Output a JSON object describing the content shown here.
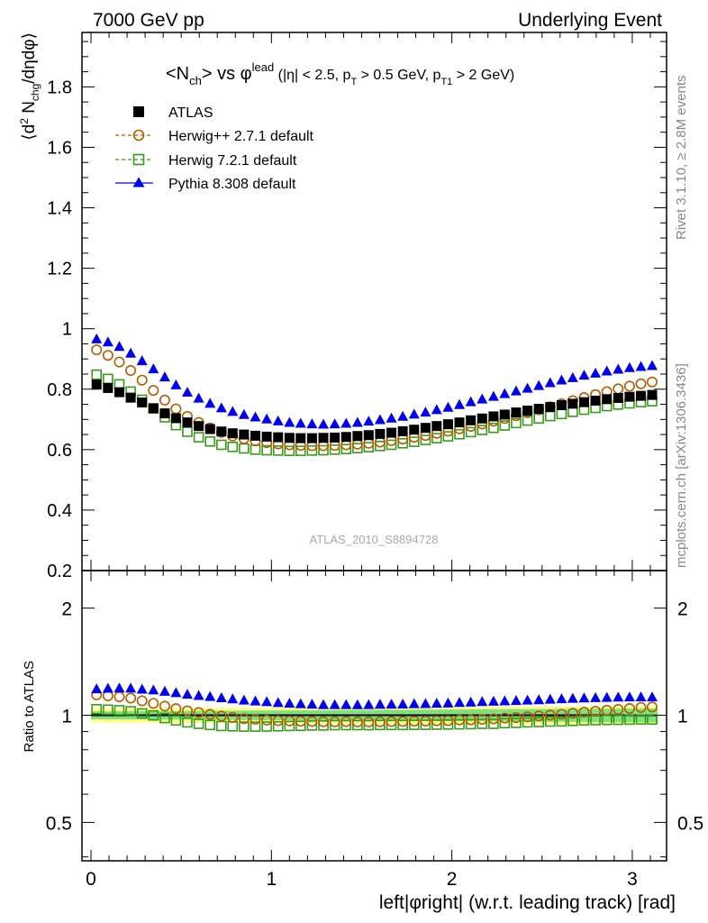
{
  "header": {
    "left": "7000 GeV pp",
    "right": "Underlying Event"
  },
  "plot_title": "<N_ch> vs φ^lead (|η| < 2.5, p_T > 0.5 GeV, p_T1 > 2 GeV)",
  "side_labels": {
    "rivet": "Rivet 3.1.10, ≥ 2.8M events",
    "mcplots": "mcplots.cern.ch [arXiv:1306.3436]"
  },
  "analysis_label": "ATLAS_2010_S8894728",
  "y_label_main": "⟨d² N_chg/dηdφ⟩",
  "y_label_ratio": "Ratio to ATLAS",
  "x_label": "left|φright| (w.r.t. leading track) [rad]",
  "colors": {
    "atlas": "#000000",
    "herwigpp": "#b35c00",
    "herwig7": "#3a9a1a",
    "pythia": "#0000ee",
    "band_inner": "#7ee07e",
    "band_outer": "#ffff80"
  },
  "chart_data": [
    {
      "type": "scatter",
      "panel": "main",
      "xlim": [
        -0.05,
        3.19
      ],
      "ylim": [
        0.2,
        1.98
      ],
      "yticks": [
        0.2,
        0.4,
        0.6,
        0.8,
        1,
        1.2,
        1.4,
        1.6,
        1.8
      ],
      "ytick_labels": [
        "0.2",
        "0.4",
        "0.6",
        "0.8",
        "1",
        "1.2",
        "1.4",
        "1.6",
        "1.8"
      ],
      "legend_position": "top-left",
      "x": [
        0.031,
        0.094,
        0.157,
        0.22,
        0.283,
        0.346,
        0.409,
        0.471,
        0.534,
        0.597,
        0.66,
        0.723,
        0.785,
        0.848,
        0.911,
        0.974,
        1.037,
        1.1,
        1.162,
        1.225,
        1.288,
        1.351,
        1.414,
        1.477,
        1.539,
        1.602,
        1.665,
        1.728,
        1.791,
        1.854,
        1.916,
        1.979,
        2.042,
        2.105,
        2.168,
        2.231,
        2.293,
        2.356,
        2.419,
        2.482,
        2.545,
        2.608,
        2.67,
        2.733,
        2.796,
        2.859,
        2.922,
        2.985,
        3.048,
        3.11
      ],
      "series": [
        {
          "name": "ATLAS",
          "marker": "filled-square",
          "values": [
            0.815,
            0.804,
            0.79,
            0.772,
            0.756,
            0.737,
            0.72,
            0.704,
            0.69,
            0.678,
            0.668,
            0.66,
            0.654,
            0.65,
            0.646,
            0.643,
            0.641,
            0.639,
            0.638,
            0.638,
            0.639,
            0.64,
            0.642,
            0.645,
            0.648,
            0.652,
            0.656,
            0.661,
            0.666,
            0.672,
            0.678,
            0.684,
            0.69,
            0.697,
            0.703,
            0.71,
            0.716,
            0.723,
            0.729,
            0.735,
            0.741,
            0.747,
            0.752,
            0.757,
            0.762,
            0.767,
            0.771,
            0.775,
            0.778,
            0.781
          ]
        },
        {
          "name": "Herwig++ 2.7.1 default",
          "marker": "open-circle",
          "values": [
            0.93,
            0.912,
            0.89,
            0.862,
            0.83,
            0.796,
            0.764,
            0.735,
            0.71,
            0.69,
            0.672,
            0.657,
            0.645,
            0.636,
            0.629,
            0.623,
            0.619,
            0.616,
            0.614,
            0.613,
            0.613,
            0.614,
            0.616,
            0.618,
            0.621,
            0.625,
            0.63,
            0.635,
            0.641,
            0.647,
            0.654,
            0.661,
            0.669,
            0.677,
            0.685,
            0.694,
            0.703,
            0.712,
            0.722,
            0.732,
            0.742,
            0.752,
            0.762,
            0.772,
            0.782,
            0.792,
            0.801,
            0.81,
            0.818,
            0.824
          ]
        },
        {
          "name": "Herwig 7.2.1 default",
          "marker": "open-square",
          "values": [
            0.848,
            0.834,
            0.816,
            0.792,
            0.765,
            0.736,
            0.707,
            0.681,
            0.659,
            0.641,
            0.627,
            0.616,
            0.609,
            0.604,
            0.6,
            0.598,
            0.597,
            0.596,
            0.596,
            0.597,
            0.598,
            0.6,
            0.602,
            0.605,
            0.608,
            0.612,
            0.616,
            0.621,
            0.626,
            0.632,
            0.638,
            0.644,
            0.651,
            0.658,
            0.665,
            0.672,
            0.68,
            0.688,
            0.696,
            0.703,
            0.711,
            0.718,
            0.725,
            0.732,
            0.738,
            0.744,
            0.749,
            0.753,
            0.757,
            0.76
          ]
        },
        {
          "name": "Pythia 8.308 default",
          "marker": "filled-triangle",
          "values": [
            0.965,
            0.955,
            0.94,
            0.918,
            0.893,
            0.866,
            0.839,
            0.813,
            0.789,
            0.769,
            0.752,
            0.737,
            0.725,
            0.715,
            0.707,
            0.7,
            0.694,
            0.689,
            0.686,
            0.684,
            0.683,
            0.684,
            0.686,
            0.689,
            0.693,
            0.698,
            0.703,
            0.709,
            0.716,
            0.723,
            0.731,
            0.739,
            0.748,
            0.757,
            0.766,
            0.775,
            0.784,
            0.793,
            0.802,
            0.811,
            0.82,
            0.829,
            0.837,
            0.845,
            0.852,
            0.859,
            0.865,
            0.87,
            0.874,
            0.877
          ]
        }
      ]
    },
    {
      "type": "scatter",
      "panel": "ratio",
      "ylabel": "Ratio to ATLAS",
      "xlabel": "left|φright| (w.r.t. leading track) [rad]",
      "xlim": [
        -0.05,
        3.19
      ],
      "ylim": [
        0.39,
        2.55
      ],
      "log_y": true,
      "xticks": [
        0,
        1,
        2,
        3
      ],
      "xtick_labels": [
        "0",
        "1",
        "2",
        "3"
      ],
      "yticks": [
        0.5,
        1,
        2
      ],
      "ytick_labels": [
        "0.5",
        "1",
        "2"
      ],
      "band": {
        "inner": [
          0.025,
          0.045
        ],
        "outer": [
          0.045,
          0.06
        ]
      },
      "series": [
        {
          "name": "Herwig++ 2.7.1 default",
          "marker": "open-circle",
          "values": [
            1.141,
            1.134,
            1.127,
            1.117,
            1.098,
            1.08,
            1.061,
            1.044,
            1.029,
            1.018,
            1.006,
            0.995,
            0.986,
            0.978,
            0.974,
            0.969,
            0.966,
            0.964,
            0.962,
            0.961,
            0.959,
            0.959,
            0.96,
            0.958,
            0.958,
            0.959,
            0.96,
            0.961,
            0.962,
            0.963,
            0.965,
            0.966,
            0.97,
            0.971,
            0.974,
            0.977,
            0.982,
            0.985,
            0.99,
            0.996,
            1.001,
            1.007,
            1.013,
            1.02,
            1.026,
            1.033,
            1.039,
            1.045,
            1.052,
            1.055
          ]
        },
        {
          "name": "Herwig 7.2.1 default",
          "marker": "open-square",
          "values": [
            1.04,
            1.037,
            1.033,
            1.026,
            1.012,
            0.999,
            0.982,
            0.967,
            0.955,
            0.946,
            0.939,
            0.933,
            0.931,
            0.929,
            0.929,
            0.93,
            0.931,
            0.933,
            0.934,
            0.936,
            0.936,
            0.938,
            0.938,
            0.938,
            0.938,
            0.939,
            0.939,
            0.939,
            0.94,
            0.94,
            0.941,
            0.942,
            0.943,
            0.944,
            0.946,
            0.946,
            0.95,
            0.952,
            0.955,
            0.957,
            0.96,
            0.961,
            0.964,
            0.967,
            0.969,
            0.97,
            0.971,
            0.972,
            0.973,
            0.973
          ]
        },
        {
          "name": "Pythia 8.308 default",
          "marker": "filled-triangle",
          "values": [
            1.184,
            1.188,
            1.19,
            1.189,
            1.181,
            1.175,
            1.165,
            1.155,
            1.143,
            1.134,
            1.126,
            1.117,
            1.109,
            1.1,
            1.094,
            1.089,
            1.083,
            1.078,
            1.075,
            1.072,
            1.069,
            1.069,
            1.069,
            1.068,
            1.069,
            1.071,
            1.072,
            1.073,
            1.075,
            1.076,
            1.078,
            1.08,
            1.084,
            1.086,
            1.09,
            1.092,
            1.095,
            1.097,
            1.1,
            1.103,
            1.107,
            1.11,
            1.113,
            1.116,
            1.118,
            1.12,
            1.122,
            1.123,
            1.123,
            1.123
          ]
        }
      ]
    }
  ]
}
